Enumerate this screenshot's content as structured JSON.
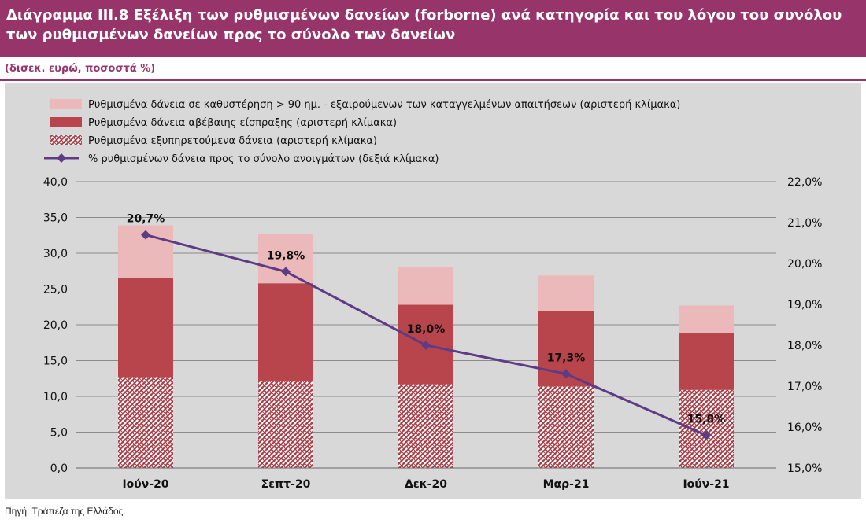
{
  "header": {
    "title": "Διάγραμμα III.8 Εξέλιξη των ρυθμισμένων δανείων (forborne) ανά κατηγορία και του λόγου του συνόλου των ρυθμισμένων δανείων προς το σύνολο των δανείων",
    "subtitle": "(δισεκ. ευρώ, ποσοστά %)"
  },
  "footer": {
    "source": "Πηγή: Τράπεζα της Ελλάδος."
  },
  "chart_data": {
    "type": "bar",
    "stacked": true,
    "categories": [
      "Ιούν-20",
      "Σεπτ-20",
      "Δεκ-20",
      "Μαρ-21",
      "Ιούν-21"
    ],
    "series": [
      {
        "name": "Ρυθμισμένα εξυπηρετούμενα δάνεια (αριστερή κλίμακα)",
        "type": "bar",
        "axis": "left",
        "values": [
          12.7,
          12.2,
          11.7,
          11.4,
          10.9
        ],
        "color": "#a3404a",
        "pattern": "hatch"
      },
      {
        "name": "Ρυθμισμένα δάνεια αβέβαιης είσπραξης (αριστερή κλίμακα)",
        "type": "bar",
        "axis": "left",
        "values": [
          13.9,
          13.6,
          11.1,
          10.5,
          7.9
        ],
        "color": "#b8454b"
      },
      {
        "name": "Ρυθμισμένα δάνεια σε καθυστέρηση > 90 ημ. - εξαιρούμενων των καταγγελμένων απαιτήσεων (αριστερή κλίμακα)",
        "type": "bar",
        "axis": "left",
        "values": [
          7.3,
          6.9,
          5.3,
          5.0,
          3.9
        ],
        "color": "#ebb9b9"
      },
      {
        "name": "% ρυθμισμένων δάνεια προς το σύνολο ανοιγμάτων (δεξιά κλίμακα)",
        "type": "line",
        "axis": "right",
        "values": [
          20.7,
          19.8,
          18.0,
          17.3,
          15.8
        ],
        "labels": [
          "20,7%",
          "19,8%",
          "18,0%",
          "17,3%",
          "15,8%"
        ],
        "color": "#5e3c85"
      }
    ],
    "legend_order": [
      2,
      1,
      0,
      3
    ],
    "y_left": {
      "range": [
        0,
        40
      ],
      "ticks": [
        "0,0",
        "5,0",
        "10,0",
        "15,0",
        "20,0",
        "25,0",
        "30,0",
        "35,0",
        "40,0"
      ]
    },
    "y_right": {
      "range": [
        15,
        22
      ],
      "ticks": [
        "15,0%",
        "16,0%",
        "17,0%",
        "18,0%",
        "19,0%",
        "20,0%",
        "21,0%",
        "22,0%"
      ]
    },
    "grid": true,
    "legend_position": "top-left"
  }
}
